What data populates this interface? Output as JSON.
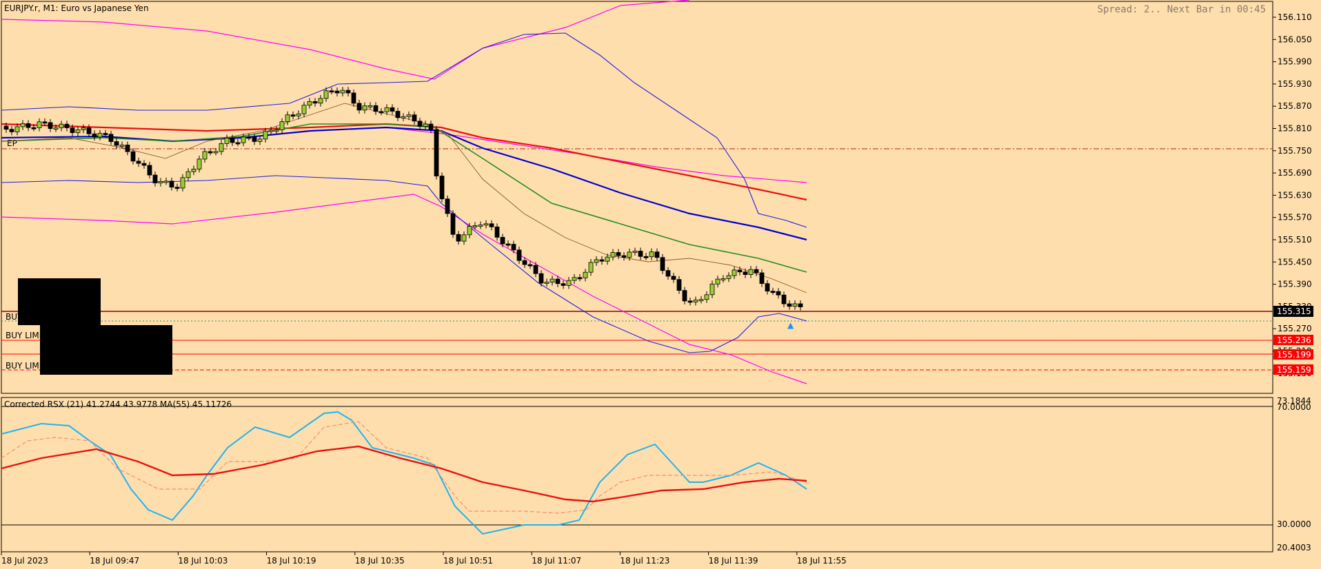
{
  "header": {
    "symbol_title": "EURJPY.r, M1:  Euro vs Japanese Yen",
    "spread_text": "Spread: 2.. Next Bar in 00:45",
    "ep_label": "EP"
  },
  "orders": [
    {
      "label": "BUY"
    },
    {
      "label": "BUY LIMI"
    },
    {
      "label": "BUY LIMI"
    }
  ],
  "price_axis": {
    "ticks": [
      "156.110",
      "156.050",
      "155.990",
      "155.930",
      "155.870",
      "155.810",
      "155.750",
      "155.690",
      "155.630",
      "155.570",
      "155.510",
      "155.450",
      "155.390",
      "155.330",
      "155.270",
      "155.210",
      "155.150"
    ],
    "current_price": "155.315",
    "tags": [
      {
        "text": "155.236",
        "color": "#FF0000"
      },
      {
        "text": "155.199",
        "color": "#FF0000"
      },
      {
        "text": "155.159",
        "color": "#FF0000"
      }
    ]
  },
  "indicator": {
    "title": "Corrected RSX (21) 41.2744 43.9778 MA(55) 45.11726",
    "ticks": [
      "73.1844",
      "70.0000",
      "30.0000",
      "20.4003"
    ]
  },
  "time_axis": [
    "18 Jul 2023",
    "18 Jul 09:47",
    "18 Jul 10:03",
    "18 Jul 10:19",
    "18 Jul 10:35",
    "18 Jul 10:51",
    "18 Jul 11:07",
    "18 Jul 11:23",
    "18 Jul 11:39",
    "18 Jul 11:55"
  ],
  "colors": {
    "background": "#FFDEAD",
    "bull": "#9ACD32",
    "bear": "#000000",
    "ma_fast": "#0000CD",
    "ma_slow": "#E81010",
    "ma_mid": "#228B22",
    "ma_thin": "#8B5A2B",
    "bands_outer": "#FF00FF",
    "bands_inner": "#1E1EE0",
    "rsx_up": "#1EB4F0",
    "rsx_down": "#FA8C6E"
  },
  "chart_data": {
    "type": "candlestick",
    "title": "EURJPY.r, M1:  Euro vs Japanese Yen",
    "ylim": [
      155.13,
      156.13
    ],
    "indicator_ylim": [
      20.4003,
      73.1844
    ],
    "current_price": 155.315,
    "pending_orders": [
      155.236,
      155.199,
      155.159
    ],
    "ohlc": [],
    "indicator_series": []
  }
}
